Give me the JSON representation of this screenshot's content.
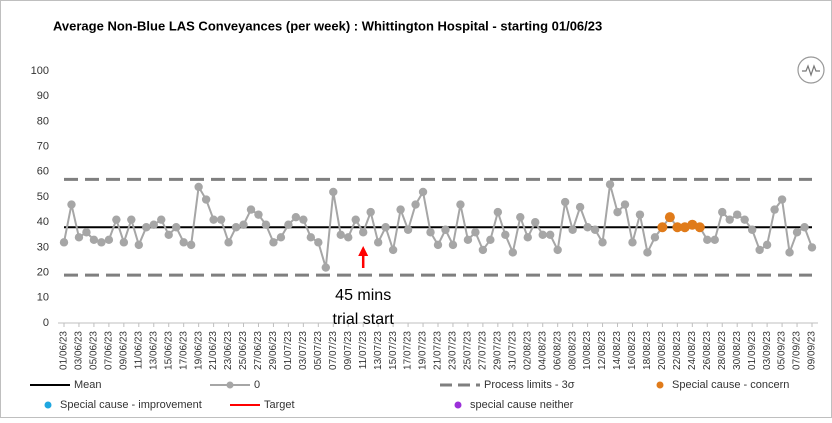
{
  "chart_data": {
    "type": "line",
    "title": "Average Non-Blue LAS Conveyances (per week) : Whittington Hospital - starting 01/06/23",
    "categories": [
      "01/06/23",
      null,
      "03/06/23",
      null,
      "05/06/23",
      null,
      "07/06/23",
      null,
      "09/06/23",
      null,
      "11/06/23",
      null,
      "13/06/23",
      null,
      "15/06/23",
      null,
      "17/06/23",
      null,
      "19/06/23",
      null,
      "21/06/23",
      null,
      "23/06/23",
      null,
      "25/06/23",
      null,
      "27/06/23",
      null,
      "29/06/23",
      null,
      "01/07/23",
      null,
      "03/07/23",
      null,
      "05/07/23",
      null,
      "07/07/23",
      null,
      "09/07/23",
      null,
      "11/07/23",
      null,
      "13/07/23",
      null,
      "15/07/23",
      null,
      "17/07/23",
      null,
      "19/07/23",
      null,
      "21/07/23",
      null,
      "23/07/23",
      null,
      "25/07/23",
      null,
      "27/07/23",
      null,
      "29/07/23",
      null,
      "31/07/23",
      null,
      "02/08/23",
      null,
      "04/08/23",
      null,
      "06/08/23",
      null,
      "08/08/23",
      null,
      "10/08/23",
      null,
      "12/08/23",
      null,
      "14/08/23",
      null,
      "16/08/23",
      null,
      "18/08/23",
      null,
      "20/08/23",
      null,
      "22/08/23",
      null,
      "24/08/23",
      null,
      "26/08/23",
      null,
      "28/08/23",
      null,
      "30/08/23",
      null,
      "01/09/23",
      null,
      "03/09/23",
      null,
      "05/09/23",
      null,
      "07/09/23",
      null,
      "09/09/23"
    ],
    "series": [
      {
        "name": "0",
        "color": "#a6a6a6",
        "values": [
          32,
          47,
          34,
          36,
          33,
          32,
          33,
          41,
          32,
          41,
          31,
          38,
          39,
          41,
          35,
          38,
          32,
          31,
          54,
          49,
          41,
          41,
          32,
          38,
          39,
          45,
          43,
          39,
          32,
          34,
          39,
          42,
          41,
          34,
          32,
          22,
          52,
          35,
          34,
          41,
          36,
          44,
          32,
          38,
          29,
          45,
          37,
          47,
          52,
          36,
          31,
          37,
          31,
          47,
          33,
          36,
          29,
          33,
          44,
          35,
          28,
          42,
          34,
          40,
          35,
          35,
          29,
          48,
          37,
          46,
          38,
          37,
          32,
          55,
          44,
          47,
          32,
          43,
          28,
          34,
          38,
          42,
          38,
          38,
          39,
          38,
          33,
          33,
          44,
          41,
          43,
          41,
          37,
          29,
          31,
          45,
          49,
          28,
          36,
          38,
          30
        ]
      },
      {
        "name": "Special cause - concern",
        "color": "#e07b1a",
        "values": [
          null,
          null,
          null,
          null,
          null,
          null,
          null,
          null,
          null,
          null,
          null,
          null,
          null,
          null,
          null,
          null,
          null,
          null,
          null,
          null,
          null,
          null,
          null,
          null,
          null,
          null,
          null,
          null,
          null,
          null,
          null,
          null,
          null,
          null,
          null,
          null,
          null,
          null,
          null,
          null,
          null,
          null,
          null,
          null,
          null,
          null,
          null,
          null,
          null,
          null,
          null,
          null,
          null,
          null,
          null,
          null,
          null,
          null,
          null,
          null,
          null,
          null,
          null,
          null,
          null,
          null,
          null,
          null,
          null,
          null,
          null,
          null,
          null,
          null,
          null,
          null,
          null,
          null,
          null,
          null,
          38,
          42,
          38,
          38,
          39,
          38,
          null,
          null,
          null,
          null,
          null,
          null,
          null,
          null,
          null,
          null,
          null,
          null,
          null,
          null,
          null
        ]
      }
    ],
    "mean": 38,
    "process_limits": [
      19,
      57
    ],
    "ylim": [
      0,
      100
    ],
    "yticks": [
      0,
      10,
      20,
      30,
      40,
      50,
      60,
      70,
      80,
      90,
      100
    ],
    "grid": false,
    "annotation": {
      "lines": [
        "45 mins",
        "trial start"
      ],
      "index": 40,
      "color": "#ff0000"
    },
    "legend": [
      {
        "name": "Mean",
        "color": "#000000",
        "style": "line"
      },
      {
        "name": "0",
        "color": "#a6a6a6",
        "style": "line-dot"
      },
      {
        "name": "Process limits - 3σ",
        "color": "#7f7f7f",
        "style": "dash"
      },
      {
        "name": "Special cause - concern",
        "color": "#e07b1a",
        "style": "dot"
      },
      {
        "name": "Special cause  - improvement",
        "color": "#1fa7e0",
        "style": "dot"
      },
      {
        "name": "Target",
        "color": "#ff0000",
        "style": "line"
      },
      {
        "name": "special cause neither",
        "color": "#9b30d9",
        "style": "dot"
      }
    ]
  }
}
